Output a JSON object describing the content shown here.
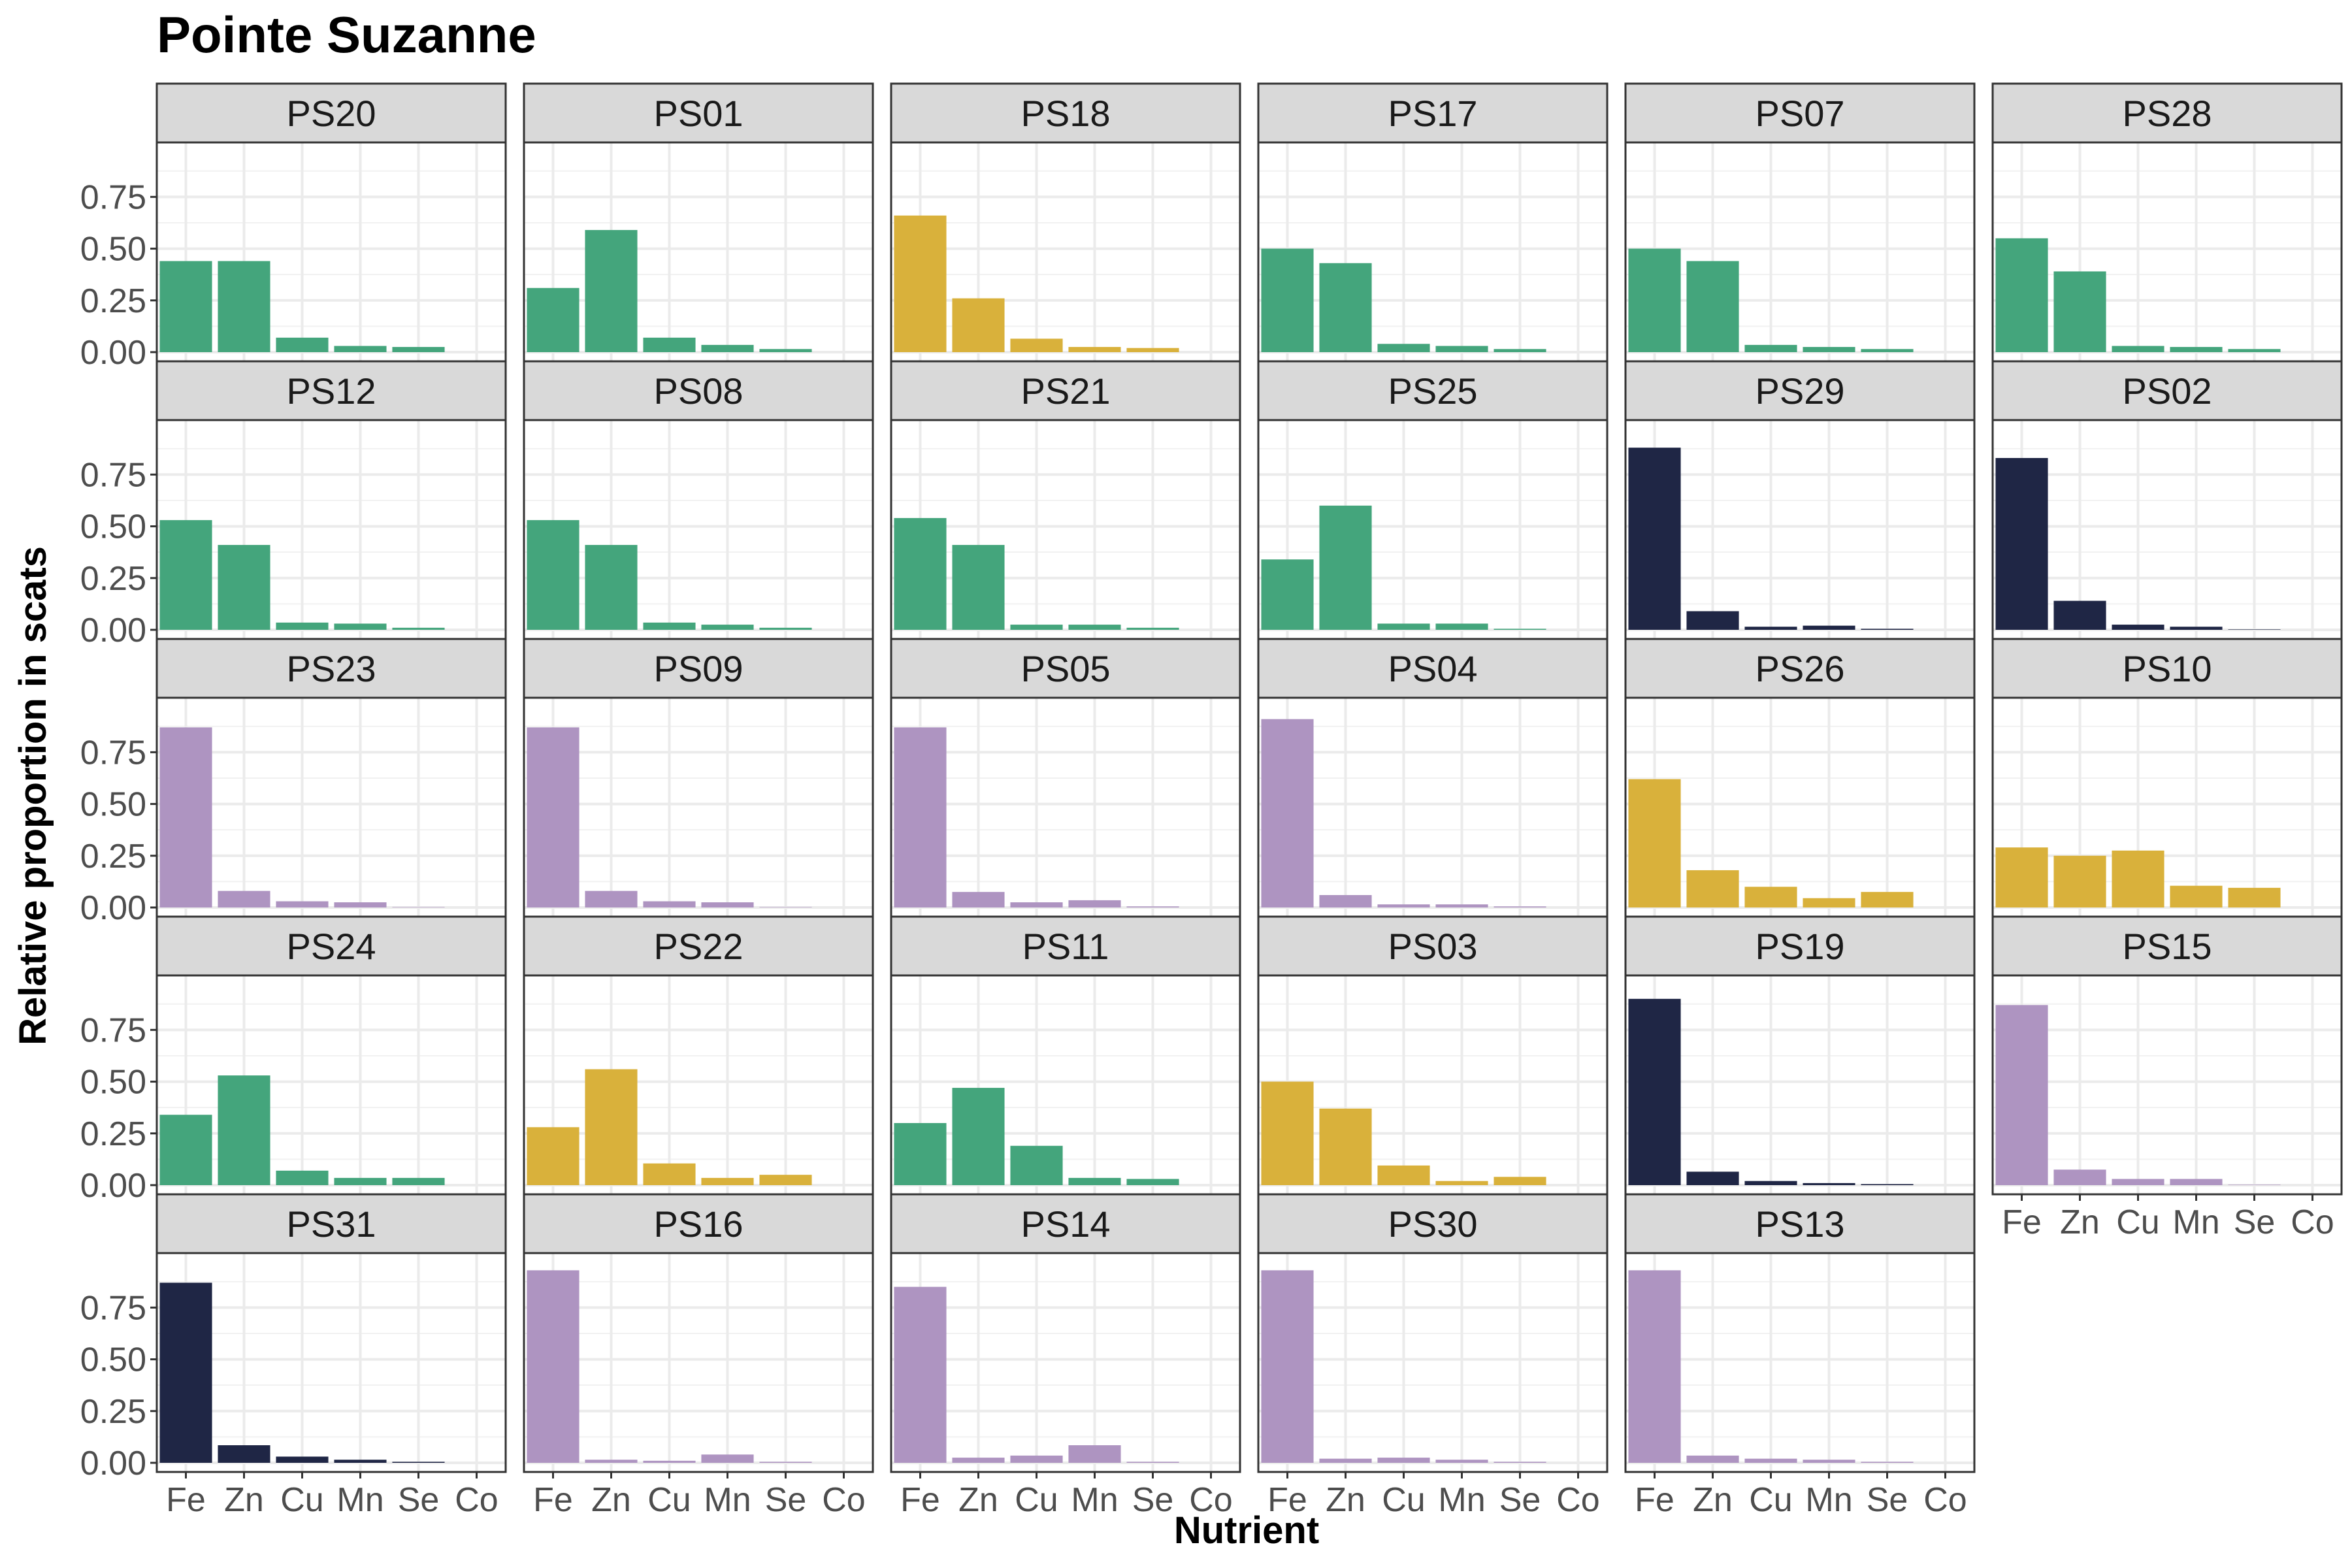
{
  "chart_data": {
    "type": "bar",
    "title": "Pointe Suzanne",
    "xlabel": "Nutrient",
    "ylabel": "Relative proportion in scats",
    "categories": [
      "Fe",
      "Zn",
      "Cu",
      "Mn",
      "Se",
      "Co"
    ],
    "ylim": [
      0,
      0.95
    ],
    "yticks": [
      "0.00",
      "0.25",
      "0.50",
      "0.75"
    ],
    "grid": true,
    "facets": [
      {
        "name": "PS20",
        "color": "#44a57c",
        "values": [
          0.44,
          0.44,
          0.07,
          0.03,
          0.025,
          0.0
        ]
      },
      {
        "name": "PS01",
        "color": "#44a57c",
        "values": [
          0.31,
          0.59,
          0.07,
          0.035,
          0.015,
          0.0
        ]
      },
      {
        "name": "PS18",
        "color": "#d9b13b",
        "values": [
          0.66,
          0.26,
          0.065,
          0.025,
          0.02,
          0.0
        ]
      },
      {
        "name": "PS17",
        "color": "#44a57c",
        "values": [
          0.5,
          0.43,
          0.04,
          0.03,
          0.015,
          0.0
        ]
      },
      {
        "name": "PS07",
        "color": "#44a57c",
        "values": [
          0.5,
          0.44,
          0.035,
          0.025,
          0.015,
          0.0
        ]
      },
      {
        "name": "PS28",
        "color": "#44a57c",
        "values": [
          0.55,
          0.39,
          0.03,
          0.025,
          0.015,
          0.0
        ]
      },
      {
        "name": "PS12",
        "color": "#44a57c",
        "values": [
          0.53,
          0.41,
          0.035,
          0.03,
          0.01,
          0.0
        ]
      },
      {
        "name": "PS08",
        "color": "#44a57c",
        "values": [
          0.53,
          0.41,
          0.035,
          0.025,
          0.01,
          0.0
        ]
      },
      {
        "name": "PS21",
        "color": "#44a57c",
        "values": [
          0.54,
          0.41,
          0.025,
          0.025,
          0.01,
          0.0
        ]
      },
      {
        "name": "PS25",
        "color": "#44a57c",
        "values": [
          0.34,
          0.6,
          0.03,
          0.03,
          0.005,
          0.0
        ]
      },
      {
        "name": "PS29",
        "color": "#1f2645",
        "values": [
          0.88,
          0.09,
          0.015,
          0.02,
          0.005,
          0.0
        ]
      },
      {
        "name": "PS02",
        "color": "#1f2645",
        "values": [
          0.83,
          0.14,
          0.025,
          0.015,
          0.002,
          0.0
        ]
      },
      {
        "name": "PS23",
        "color": "#ae94c1",
        "values": [
          0.87,
          0.08,
          0.03,
          0.025,
          0.002,
          0.0
        ]
      },
      {
        "name": "PS09",
        "color": "#ae94c1",
        "values": [
          0.87,
          0.08,
          0.03,
          0.025,
          0.002,
          0.0
        ]
      },
      {
        "name": "PS05",
        "color": "#ae94c1",
        "values": [
          0.87,
          0.075,
          0.025,
          0.035,
          0.005,
          0.0
        ]
      },
      {
        "name": "PS04",
        "color": "#ae94c1",
        "values": [
          0.91,
          0.06,
          0.015,
          0.015,
          0.005,
          0.0
        ]
      },
      {
        "name": "PS26",
        "color": "#d9b13b",
        "values": [
          0.62,
          0.18,
          0.1,
          0.045,
          0.075,
          0.0
        ]
      },
      {
        "name": "PS10",
        "color": "#d9b13b",
        "values": [
          0.29,
          0.25,
          0.275,
          0.105,
          0.095,
          0.0
        ]
      },
      {
        "name": "PS24",
        "color": "#44a57c",
        "values": [
          0.34,
          0.53,
          0.07,
          0.035,
          0.035,
          0.0
        ]
      },
      {
        "name": "PS22",
        "color": "#d9b13b",
        "values": [
          0.28,
          0.56,
          0.105,
          0.035,
          0.05,
          0.0
        ]
      },
      {
        "name": "PS11",
        "color": "#44a57c",
        "values": [
          0.3,
          0.47,
          0.19,
          0.035,
          0.03,
          0.0
        ]
      },
      {
        "name": "PS03",
        "color": "#d9b13b",
        "values": [
          0.5,
          0.37,
          0.095,
          0.02,
          0.04,
          0.0
        ]
      },
      {
        "name": "PS19",
        "color": "#1f2645",
        "values": [
          0.9,
          0.065,
          0.02,
          0.01,
          0.005,
          0.0
        ]
      },
      {
        "name": "PS15",
        "color": "#ae94c1",
        "values": [
          0.87,
          0.075,
          0.03,
          0.03,
          0.002,
          0.0
        ]
      },
      {
        "name": "PS31",
        "color": "#1f2645",
        "values": [
          0.87,
          0.085,
          0.03,
          0.015,
          0.005,
          0.0
        ]
      },
      {
        "name": "PS16",
        "color": "#ae94c1",
        "values": [
          0.93,
          0.015,
          0.01,
          0.04,
          0.005,
          0.0
        ]
      },
      {
        "name": "PS14",
        "color": "#ae94c1",
        "values": [
          0.85,
          0.025,
          0.035,
          0.085,
          0.005,
          0.0
        ]
      },
      {
        "name": "PS30",
        "color": "#ae94c1",
        "values": [
          0.93,
          0.02,
          0.025,
          0.015,
          0.005,
          0.0
        ]
      },
      {
        "name": "PS13",
        "color": "#ae94c1",
        "values": [
          0.93,
          0.035,
          0.02,
          0.015,
          0.005,
          0.0
        ]
      }
    ]
  }
}
